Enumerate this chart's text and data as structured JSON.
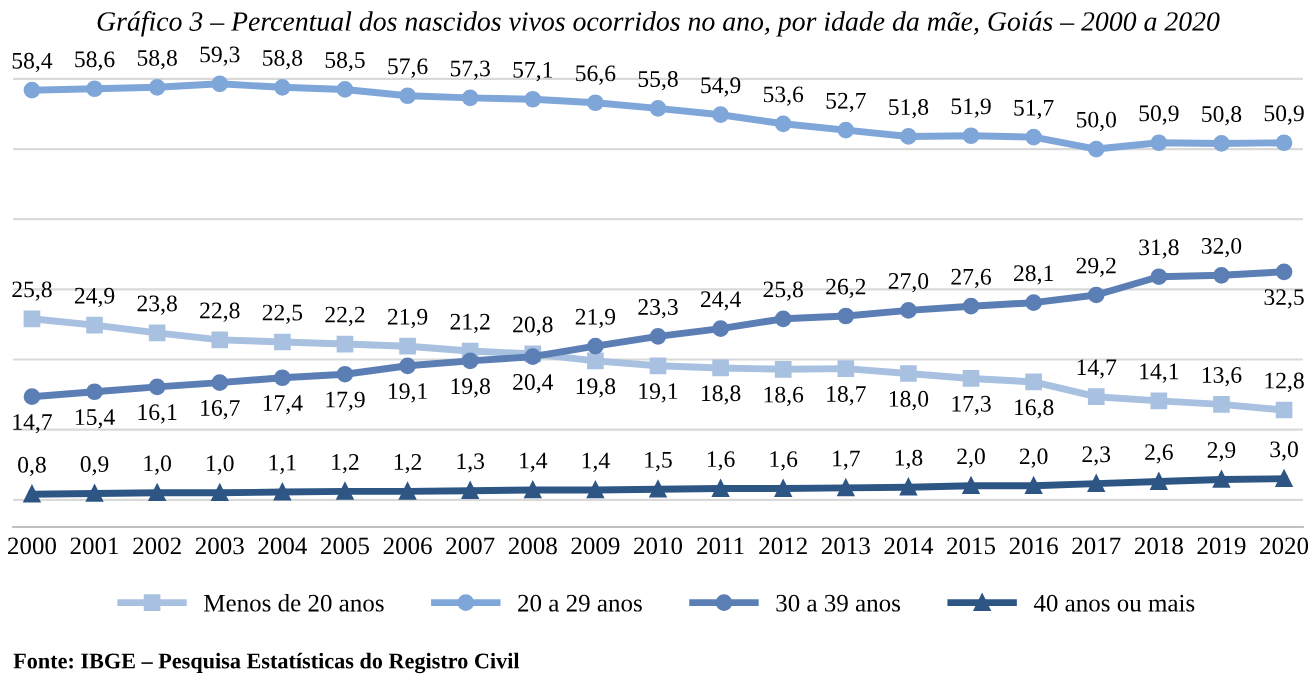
{
  "chart_data": {
    "type": "line",
    "title": "Gráfico 3 – Percentual dos nascidos vivos ocorridos no ano, por idade da mãe, Goiás – 2000 a 2020",
    "categories": [
      "2000",
      "2001",
      "2002",
      "2003",
      "2004",
      "2005",
      "2006",
      "2007",
      "2008",
      "2009",
      "2010",
      "2011",
      "2012",
      "2013",
      "2014",
      "2015",
      "2016",
      "2017",
      "2018",
      "2019",
      "2020"
    ],
    "series": [
      {
        "name": "Menos de 20 anos",
        "color": "#a9c1e0",
        "marker": "square",
        "values": [
          25.8,
          24.9,
          23.8,
          22.8,
          22.5,
          22.2,
          21.9,
          21.2,
          20.8,
          19.8,
          19.1,
          18.8,
          18.6,
          18.7,
          18.0,
          17.3,
          16.8,
          14.7,
          14.1,
          13.6,
          12.8
        ],
        "value_labels": [
          "25,8",
          "24,9",
          "23,8",
          "22,8",
          "22,5",
          "22,2",
          "21,9",
          "21,2",
          "20,8",
          "19,8",
          "19,1",
          "18,8",
          "18,6",
          "18,7",
          "18,0",
          "17,3",
          "16,8",
          "14,7",
          "14,1",
          "13,6",
          "12,8"
        ]
      },
      {
        "name": "20 a 29 anos",
        "color": "#7fa6d8",
        "marker": "circle",
        "values": [
          58.4,
          58.6,
          58.8,
          59.3,
          58.8,
          58.5,
          57.6,
          57.3,
          57.1,
          56.6,
          55.8,
          54.9,
          53.6,
          52.7,
          51.8,
          51.9,
          51.7,
          50.0,
          50.9,
          50.8,
          50.9
        ],
        "value_labels": [
          "58,4",
          "58,6",
          "58,8",
          "59,3",
          "58,8",
          "58,5",
          "57,6",
          "57,3",
          "57,1",
          "56,6",
          "55,8",
          "54,9",
          "53,6",
          "52,7",
          "51,8",
          "51,9",
          "51,7",
          "50,0",
          "50,9",
          "50,8",
          "50,9"
        ]
      },
      {
        "name": "30 a 39 anos",
        "color": "#5b7fb5",
        "marker": "circle",
        "values": [
          14.7,
          15.4,
          16.1,
          16.7,
          17.4,
          17.9,
          19.1,
          19.8,
          20.4,
          21.9,
          23.3,
          24.4,
          25.8,
          26.2,
          27.0,
          27.6,
          28.1,
          29.2,
          31.8,
          32.0,
          32.5
        ],
        "value_labels": [
          "14,7",
          "15,4",
          "16,1",
          "16,7",
          "17,4",
          "17,9",
          "19,1",
          "19,8",
          "20,4",
          "21,9",
          "23,3",
          "24,4",
          "25,8",
          "26,2",
          "27,0",
          "27,6",
          "28,1",
          "29,2",
          "31,8",
          "32,0",
          "32,5"
        ]
      },
      {
        "name": "40 anos ou mais",
        "color": "#2e5685",
        "marker": "triangle",
        "values": [
          0.8,
          0.9,
          1.0,
          1.0,
          1.1,
          1.2,
          1.2,
          1.3,
          1.4,
          1.4,
          1.5,
          1.6,
          1.6,
          1.7,
          1.8,
          2.0,
          2.0,
          2.3,
          2.6,
          2.9,
          3.0
        ],
        "value_labels": [
          "0,8",
          "0,9",
          "1,0",
          "1,0",
          "1,1",
          "1,2",
          "1,2",
          "1,3",
          "1,4",
          "1,4",
          "1,5",
          "1,6",
          "1,6",
          "1,7",
          "1,8",
          "2,0",
          "2,0",
          "2,3",
          "2,6",
          "2,9",
          "3,0"
        ]
      }
    ],
    "grid": "y",
    "tick_labels": "x",
    "legend": "bottom",
    "annotations": [
      "Fonte: IBGE – Pesquisa Estatísticas do Registro Civil"
    ]
  }
}
